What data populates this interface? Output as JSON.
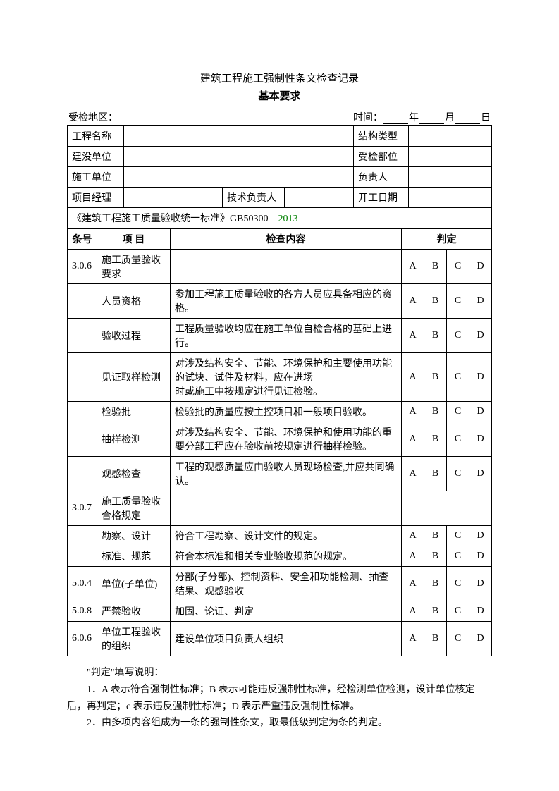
{
  "header": {
    "title": "建筑工程施工强制性条文检查记录",
    "subtitle": "基本要求",
    "region_label": "受检地区：",
    "time_label": "时间：",
    "year_label": "年",
    "month_label": "月",
    "day_label": "日"
  },
  "info": {
    "project_name_label": "工程名称",
    "project_name": "",
    "struct_type_label": "结构类型",
    "struct_type": "",
    "build_unit_label": "建没单位",
    "build_unit": "",
    "inspect_dept_label": "受检部位",
    "inspect_dept": "",
    "construct_unit_label": "施工单位",
    "construct_unit": "",
    "responsible_label": "负责人",
    "responsible": "",
    "pm_label": "项目经理",
    "pm": "",
    "tech_lead_label": "技术负责人",
    "tech_lead": "",
    "start_date_label": "开工日期",
    "start_date": ""
  },
  "standard": {
    "prefix": "《建筑工程施工质量验收统一标准》GB50300",
    "dash": "—",
    "year": "2013"
  },
  "table_headers": {
    "num": "条号",
    "item": "项  目",
    "content": "检查内容",
    "judge": "判定",
    "a": "A",
    "b": "B",
    "c": "C",
    "d": "D"
  },
  "rows": [
    {
      "num": "3.0.6",
      "item": "施工质量验收要求",
      "content": ""
    },
    {
      "num": "",
      "item": "人员资格",
      "content": "参加工程施工质量验收的各方人员应具备相应的资格。"
    },
    {
      "num": "",
      "item": "验收过程",
      "content": "工程质量验收均应在施工单位自检合格的基础上进行。"
    },
    {
      "num": "",
      "item": "见证取样检测",
      "content": "对涉及结构安全、节能、环境保护和主要使用功能的试块、试件及材料，应在进场\n时或施工中按规定进行见证检验。"
    },
    {
      "num": "",
      "item": "检验批",
      "content": "检验批的质量应按主控项目和一般项目验收。"
    },
    {
      "num": "",
      "item": "抽样检测",
      "content": "对涉及结构安全、节能、环境保护和使用功能的重要分部工程应在验收前按规定进行抽样检验。"
    },
    {
      "num": "",
      "item": "观感检查",
      "content": "工程的观感质量应由验收人员现场检查,并应共同确认。"
    },
    {
      "num": "3.0.7",
      "item": "施工质量验收合格规定",
      "content": ""
    },
    {
      "num": "",
      "item": "勘察、设计",
      "content": "符合工程勘察、设计文件的规定。"
    },
    {
      "num": "",
      "item": "标准、规范",
      "content": "符合本标准和相关专业验收规范的规定。"
    },
    {
      "num": "5.0.4",
      "item": "单位(子单位)",
      "content": "分部(子分部)、控制资料、安全和功能检测、抽查结果、观感验收"
    },
    {
      "num": "5.0.8",
      "item": "严禁验收",
      "content": "加固、论证、判定"
    },
    {
      "num": "6.0.6",
      "item": "单位工程验收的组织",
      "content": "建设单位项目负责人组织"
    }
  ],
  "notes": {
    "line0": "\"判定\"填写说明：",
    "line1": "1．A 表示符合强制性标准；B 表示可能违反强制性标准，经检测单位检测，设计单位核定后，再判定；c 表示违反强制性标准；D 表示严重违反强制性标准。",
    "line2": "2．由多项内容组成为一条的强制性条文，取最低级判定为条的判定。"
  }
}
